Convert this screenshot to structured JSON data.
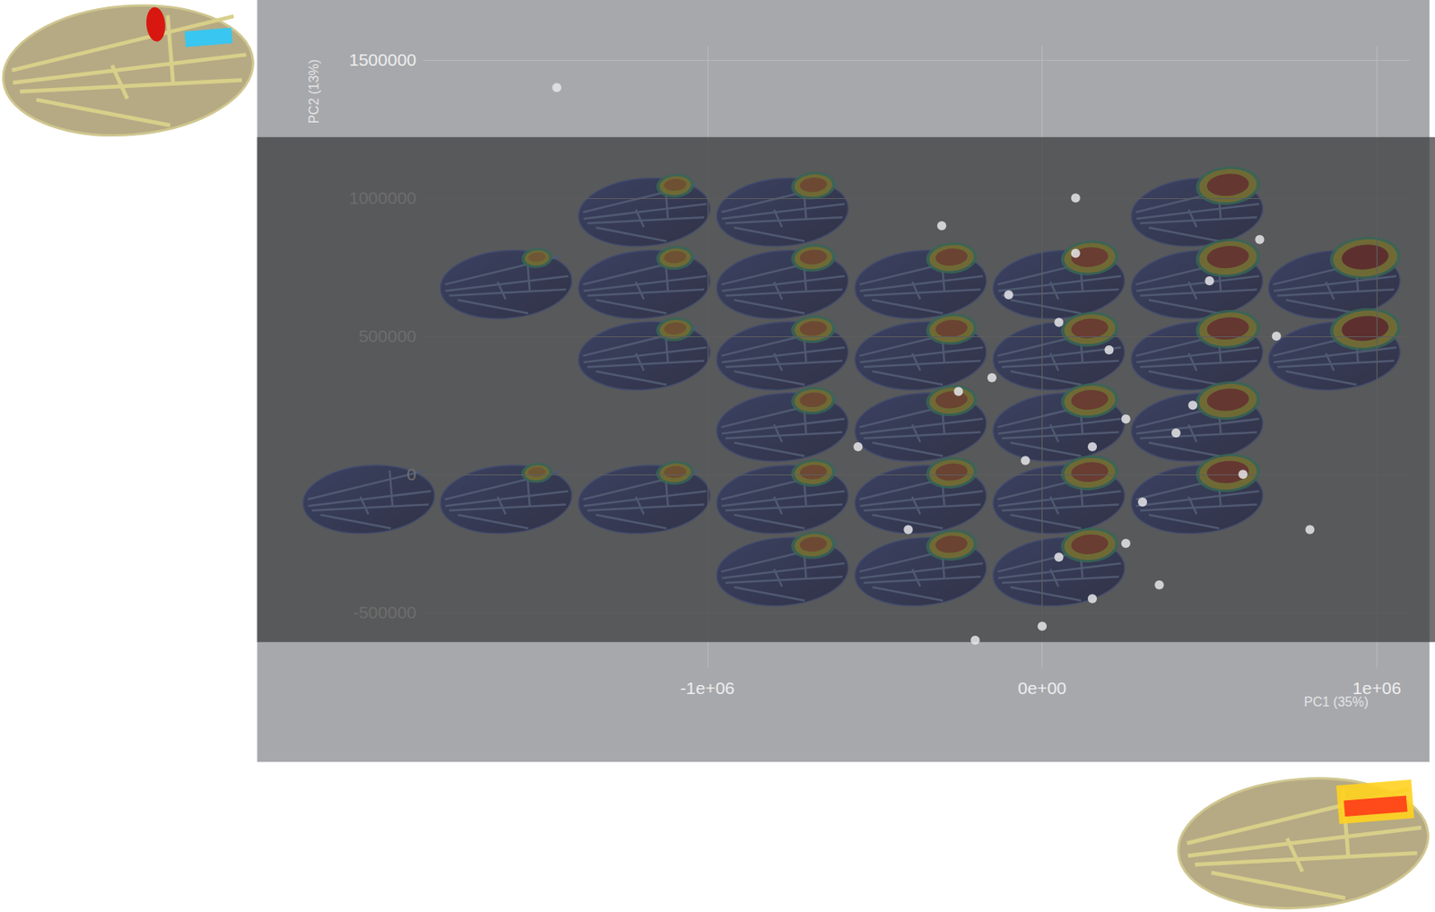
{
  "chart_data": {
    "type": "scatter",
    "x_label": "PC1 (35%)",
    "y_label": "PC2 (13%)",
    "x": [
      -1450000,
      150000,
      -250000,
      300000,
      50000,
      450000,
      -100000,
      200000,
      600000,
      -400000,
      100000,
      350000,
      -50000,
      250000,
      700000,
      0,
      -300000,
      500000,
      150000,
      -150000,
      400000,
      -550000,
      800000,
      50000,
      250000,
      -200000,
      650000,
      100000
    ],
    "values": [
      1400000,
      100000,
      300000,
      -100000,
      -300000,
      250000,
      650000,
      450000,
      0,
      -200000,
      800000,
      -400000,
      50000,
      200000,
      500000,
      -550000,
      900000,
      700000,
      -450000,
      350000,
      150000,
      100000,
      -200000,
      550000,
      -250000,
      -600000,
      850000,
      1000000
    ],
    "color": "#e6e6ea",
    "xlim": [
      -1850000,
      1100000
    ],
    "ylim": [
      -700000,
      1550000
    ],
    "xticks": [
      {
        "value": -1000000,
        "label": "-1e+06"
      },
      {
        "value": 0,
        "label": "0e+00"
      },
      {
        "value": 1000000,
        "label": "1e+06"
      }
    ],
    "yticks": [
      -500000,
      0,
      500000,
      1000000,
      1500000
    ],
    "grid": true
  }
}
